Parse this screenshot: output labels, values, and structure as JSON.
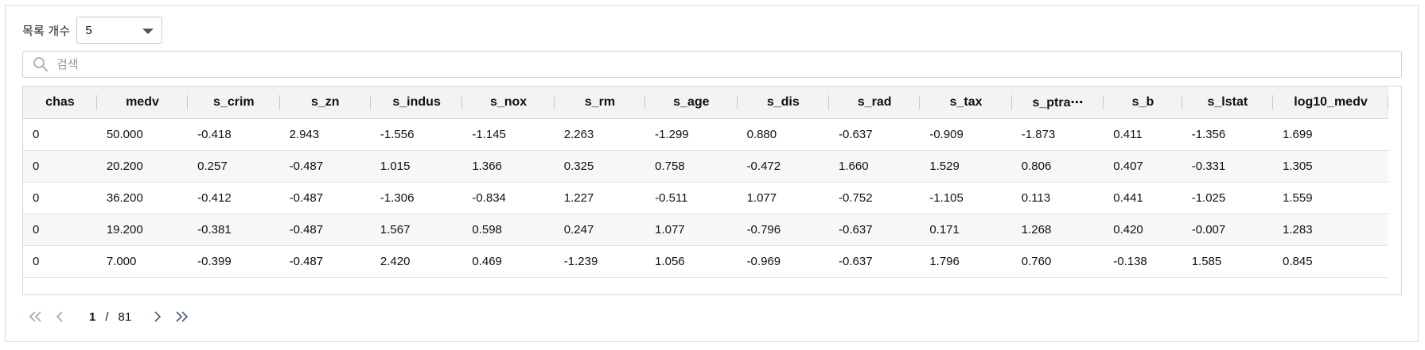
{
  "page_size": {
    "label": "목록 개수",
    "selected": "5"
  },
  "search": {
    "placeholder": "검색",
    "value": ""
  },
  "table": {
    "columns": [
      "chas",
      "medv",
      "s_crim",
      "s_zn",
      "s_indus",
      "s_nox",
      "s_rm",
      "s_age",
      "s_dis",
      "s_rad",
      "s_tax",
      "s_ptra⋯",
      "s_b",
      "s_lstat",
      "log10_medv"
    ],
    "rows": [
      [
        "0",
        "50.000",
        "-0.418",
        "2.943",
        "-1.556",
        "-1.145",
        "2.263",
        "-1.299",
        "0.880",
        "-0.637",
        "-0.909",
        "-1.873",
        "0.411",
        "-1.356",
        "1.699"
      ],
      [
        "0",
        "20.200",
        "0.257",
        "-0.487",
        "1.015",
        "1.366",
        "0.325",
        "0.758",
        "-0.472",
        "1.660",
        "1.529",
        "0.806",
        "0.407",
        "-0.331",
        "1.305"
      ],
      [
        "0",
        "36.200",
        "-0.412",
        "-0.487",
        "-1.306",
        "-0.834",
        "1.227",
        "-0.511",
        "1.077",
        "-0.752",
        "-1.105",
        "0.113",
        "0.441",
        "-1.025",
        "1.559"
      ],
      [
        "0",
        "19.200",
        "-0.381",
        "-0.487",
        "1.567",
        "0.598",
        "0.247",
        "1.077",
        "-0.796",
        "-0.637",
        "0.171",
        "1.268",
        "0.420",
        "-0.007",
        "1.283"
      ],
      [
        "0",
        "7.000",
        "-0.399",
        "-0.487",
        "2.420",
        "0.469",
        "-1.239",
        "1.056",
        "-0.969",
        "-0.637",
        "1.796",
        "0.760",
        "-0.138",
        "1.585",
        "0.845"
      ]
    ]
  },
  "pagination": {
    "current": "1",
    "separator": "/",
    "total": "81"
  },
  "colors": {
    "pager_icon": "#8a9ab5",
    "pager_icon_active": "#4a5a78",
    "header_bg": "#f3f3f3"
  }
}
